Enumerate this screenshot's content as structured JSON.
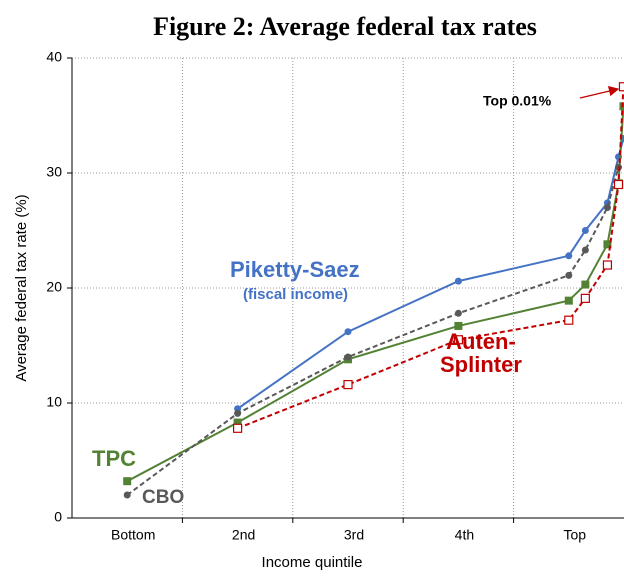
{
  "chart_data": {
    "type": "line",
    "title": "Figure 2: Average federal tax rates",
    "x_label": "Income quintile",
    "y_label": "Average federal tax rate (%)",
    "x": [
      10,
      30,
      50,
      70,
      90,
      93,
      97,
      99,
      99.9
    ],
    "xlim": [
      0,
      100
    ],
    "xticks": [
      {
        "value": 10,
        "label": "Bottom"
      },
      {
        "value": 30,
        "label": "2nd"
      },
      {
        "value": 50,
        "label": "3rd"
      },
      {
        "value": 70,
        "label": "4th"
      },
      {
        "value": 90,
        "label": "Top"
      }
    ],
    "xgrid": [
      20,
      40,
      60,
      80
    ],
    "ylim": [
      0,
      40
    ],
    "yticks": [
      0,
      10,
      20,
      30,
      40
    ],
    "grid": true,
    "series": [
      {
        "name": "Piketty-Saez",
        "sublabel": "(fiscal income)",
        "color": "#4472c4",
        "dash": false,
        "marker": "circle",
        "values": [
          null,
          9.5,
          16.2,
          20.6,
          22.8,
          25.0,
          27.4,
          31.4,
          33.0
        ]
      },
      {
        "name": "TPC",
        "color": "#548235",
        "dash": false,
        "marker": "square",
        "values": [
          3.2,
          8.3,
          13.8,
          16.7,
          18.9,
          20.3,
          23.8,
          29.1,
          35.8
        ]
      },
      {
        "name": "CBO",
        "color": "#595959",
        "dash": true,
        "marker": "circle",
        "values": [
          2.0,
          9.1,
          14.0,
          17.8,
          21.1,
          23.3,
          27.0,
          30.5,
          null
        ]
      },
      {
        "name": "Auten-\nSplinter",
        "color": "#c00000",
        "dash": true,
        "marker": "open-square",
        "values": [
          null,
          7.8,
          11.6,
          15.5,
          17.2,
          19.1,
          22.0,
          29.0,
          37.5
        ]
      }
    ],
    "annotation": {
      "text": "Top 0.01%",
      "color": "#c00000"
    }
  }
}
